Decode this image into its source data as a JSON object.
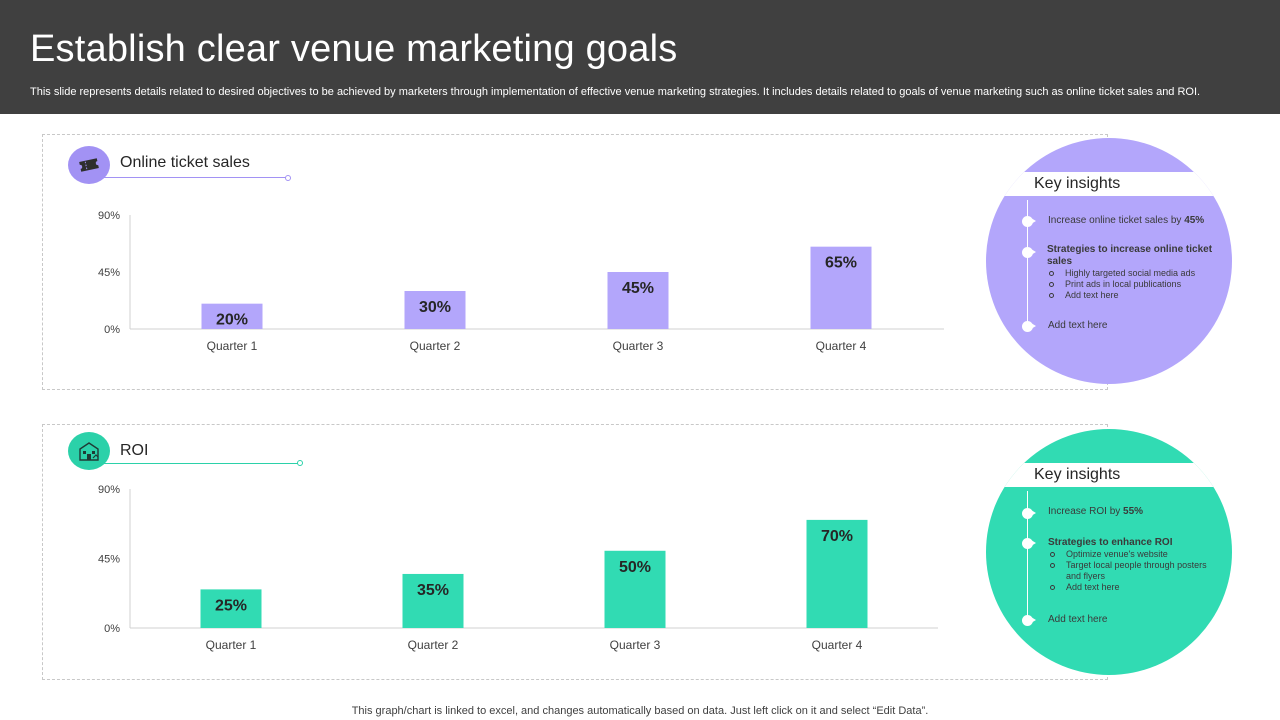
{
  "header": {
    "title": "Establish clear venue marketing goals",
    "subtitle": "This slide represents details related to desired objectives to be achieved by marketers through implementation of effective venue marketing strategies. It includes details related to goals of venue marketing such as online ticket sales and ROI."
  },
  "colors": {
    "header_bg": "#404040",
    "purple": "#b3a6fb",
    "purple_icon": "#a292f4",
    "green": "#31dbb3",
    "green_icon": "#2bd1a9"
  },
  "sections": [
    {
      "title": "Online ticket sales",
      "icon": "ticket-icon",
      "insights": {
        "title": "Key insights",
        "point1_prefix": "Increase online ticket sales by ",
        "point1_value": "45%",
        "point2_heading": "Strategies to increase online ticket sales",
        "point2_items": [
          "Highly targeted social media ads",
          "Print ads in local publications",
          "Add text here"
        ],
        "point3": "Add text here"
      }
    },
    {
      "title": "ROI",
      "icon": "venue-building-icon",
      "insights": {
        "title": "Key insights",
        "point1_prefix": "Increase ROI by ",
        "point1_value": "55%",
        "point2_heading": "Strategies to enhance ROI",
        "point2_items": [
          "Optimize venue's website",
          "Target local people through posters and flyers",
          "Add text here"
        ],
        "point3": "Add text here"
      }
    }
  ],
  "chart_data": [
    {
      "type": "bar",
      "title": "Online ticket sales",
      "categories": [
        "Quarter 1",
        "Quarter 2",
        "Quarter 3",
        "Quarter 4"
      ],
      "values": [
        20,
        30,
        45,
        65
      ],
      "data_labels": [
        "20%",
        "30%",
        "45%",
        "65%"
      ],
      "y_ticks": [
        "0%",
        "45%",
        "90%"
      ],
      "ylim": [
        0,
        90
      ],
      "color": "#b3a6fb",
      "grid": false,
      "legend": "none"
    },
    {
      "type": "bar",
      "title": "ROI",
      "categories": [
        "Quarter 1",
        "Quarter 2",
        "Quarter 3",
        "Quarter 4"
      ],
      "values": [
        25,
        35,
        50,
        70
      ],
      "data_labels": [
        "25%",
        "35%",
        "50%",
        "70%"
      ],
      "y_ticks": [
        "0%",
        "45%",
        "90%"
      ],
      "ylim": [
        0,
        90
      ],
      "color": "#31dbb3",
      "grid": false,
      "legend": "none"
    }
  ],
  "footer": "This graph/chart is linked to excel, and changes automatically based on data. Just left click on it and select “Edit Data”."
}
